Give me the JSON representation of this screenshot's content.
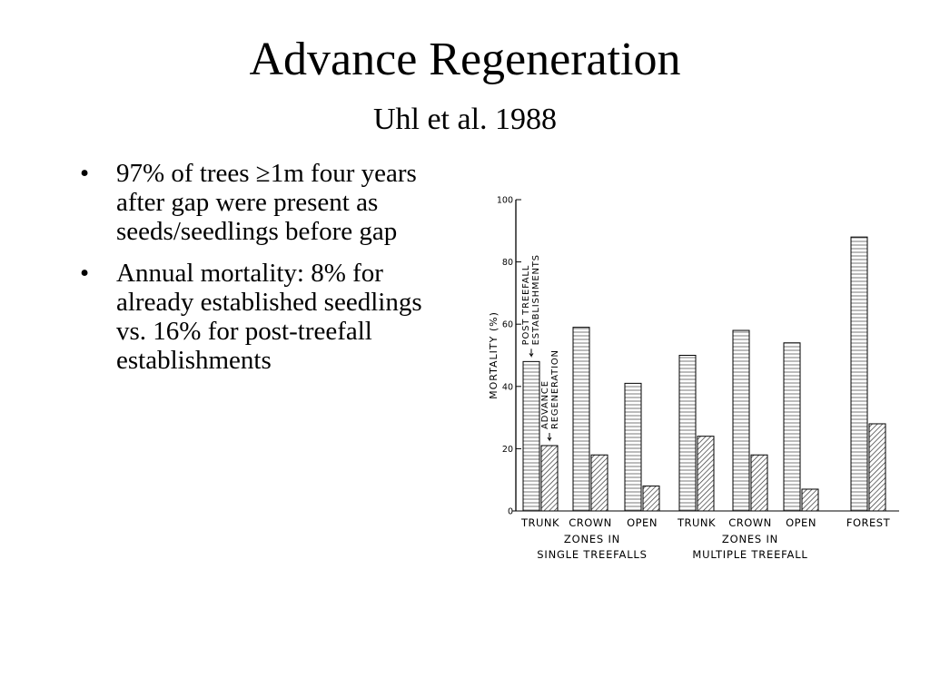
{
  "slide": {
    "title": "Advance Regeneration",
    "subtitle": "Uhl et al. 1988",
    "bullets": [
      "97% of trees ≥1m four years after gap were present as seeds/seedlings before gap",
      "Annual mortality: 8% for already established seedlings vs. 16% for post-treefall establishments"
    ]
  },
  "chart_data": {
    "type": "bar",
    "ylabel": "MORTALITY (%)",
    "ylim": [
      0,
      100
    ],
    "yticks": [
      0,
      20,
      40,
      60,
      80,
      100
    ],
    "categories": [
      "TRUNK",
      "CROWN",
      "OPEN",
      "TRUNK",
      "CROWN",
      "OPEN",
      "FOREST"
    ],
    "groups": [
      {
        "label_line1": "ZONES IN",
        "label_line2": "SINGLE  TREEFALLS",
        "categories": [
          "TRUNK",
          "CROWN",
          "OPEN"
        ]
      },
      {
        "label_line1": "ZONES IN",
        "label_line2": "MULTIPLE  TREEFALL",
        "categories": [
          "TRUNK",
          "CROWN",
          "OPEN"
        ]
      },
      {
        "label_line1": "",
        "label_line2": "",
        "categories": [
          "FOREST"
        ]
      }
    ],
    "series": [
      {
        "name": "POST TREEFALL ESTABLISHMENTS",
        "values": [
          48,
          59,
          41,
          50,
          58,
          54,
          88
        ],
        "pattern": "horizontal-lines"
      },
      {
        "name": "ADVANCE REGENERATION",
        "values": [
          21,
          18,
          8,
          24,
          18,
          7,
          28
        ],
        "pattern": "diagonal-hatch"
      }
    ],
    "annotations": [
      {
        "text_line1": "POST TREEFALL",
        "text_line2": "ESTABLISHMENTS",
        "target_series": 0,
        "target_category": 0
      },
      {
        "text_line1": "ADVANCE",
        "text_line2": "REGENERATION",
        "target_series": 1,
        "target_category": 0
      }
    ]
  }
}
